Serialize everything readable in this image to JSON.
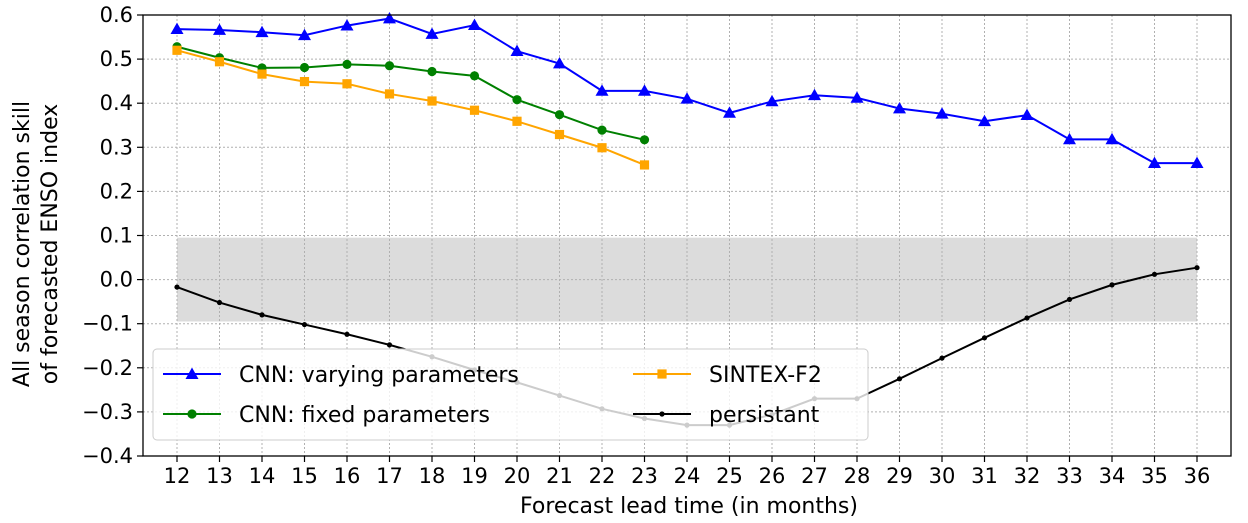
{
  "chart_data": {
    "type": "line",
    "title": "",
    "xlabel": "Forecast lead time (in months)",
    "ylabel": [
      "All season correlation skill",
      "of forecasted ENSO index"
    ],
    "xlim": [
      11.2,
      36.8
    ],
    "ylim": [
      -0.4,
      0.6
    ],
    "x_ticks": [
      12,
      13,
      14,
      15,
      16,
      17,
      18,
      19,
      20,
      21,
      22,
      23,
      24,
      25,
      26,
      27,
      28,
      29,
      30,
      31,
      32,
      33,
      34,
      35,
      36
    ],
    "y_ticks": [
      -0.4,
      -0.3,
      -0.2,
      -0.1,
      0.0,
      0.1,
      0.2,
      0.3,
      0.4,
      0.5,
      0.6
    ],
    "y_tick_labels": [
      "−0.4",
      "−0.3",
      "−0.2",
      "−0.1",
      "0.0",
      "0.1",
      "0.2",
      "0.3",
      "0.4",
      "0.5",
      "0.6"
    ],
    "grid": true,
    "shaded_band": {
      "x": [
        12,
        36
      ],
      "y": [
        -0.095,
        0.095
      ],
      "color": "#dcdcdc"
    },
    "legend_position": "lower-left",
    "series": [
      {
        "name": "CNN: varying parameters",
        "color": "#0000ff",
        "marker": "triangle",
        "x": [
          12,
          13,
          14,
          15,
          16,
          17,
          18,
          19,
          20,
          21,
          22,
          23,
          24,
          25,
          26,
          27,
          28,
          29,
          30,
          31,
          32,
          33,
          34,
          35,
          36
        ],
        "values": [
          0.568,
          0.566,
          0.561,
          0.554,
          0.576,
          0.592,
          0.557,
          0.577,
          0.518,
          0.49,
          0.428,
          0.428,
          0.41,
          0.378,
          0.404,
          0.418,
          0.412,
          0.388,
          0.376,
          0.359,
          0.373,
          0.318,
          0.318,
          0.264,
          0.264
        ]
      },
      {
        "name": "CNN: fixed parameters",
        "color": "#008000",
        "marker": "circle",
        "x": [
          12,
          13,
          14,
          15,
          16,
          17,
          18,
          19,
          20,
          21,
          22,
          23
        ],
        "values": [
          0.528,
          0.503,
          0.48,
          0.481,
          0.488,
          0.485,
          0.472,
          0.462,
          0.408,
          0.374,
          0.339,
          0.317
        ]
      },
      {
        "name": "SINTEX-F2",
        "color": "#ffa500",
        "marker": "square",
        "x": [
          12,
          13,
          14,
          15,
          16,
          17,
          18,
          19,
          20,
          21,
          22,
          23
        ],
        "values": [
          0.52,
          0.494,
          0.466,
          0.449,
          0.444,
          0.421,
          0.405,
          0.384,
          0.359,
          0.329,
          0.299,
          0.26
        ]
      },
      {
        "name": "persistant",
        "color": "#000000",
        "marker": "dot",
        "x": [
          12,
          13,
          14,
          15,
          16,
          17,
          18,
          19,
          20,
          21,
          22,
          23,
          24,
          25,
          26,
          27,
          28,
          29,
          30,
          31,
          32,
          33,
          34,
          35,
          36
        ],
        "values": [
          -0.017,
          -0.052,
          -0.08,
          -0.102,
          -0.124,
          -0.148,
          -0.175,
          -0.205,
          -0.233,
          -0.263,
          -0.293,
          -0.315,
          -0.33,
          -0.33,
          -0.306,
          -0.27,
          -0.27,
          -0.225,
          -0.178,
          -0.132,
          -0.087,
          -0.045,
          -0.012,
          0.012,
          0.027
        ]
      }
    ]
  }
}
